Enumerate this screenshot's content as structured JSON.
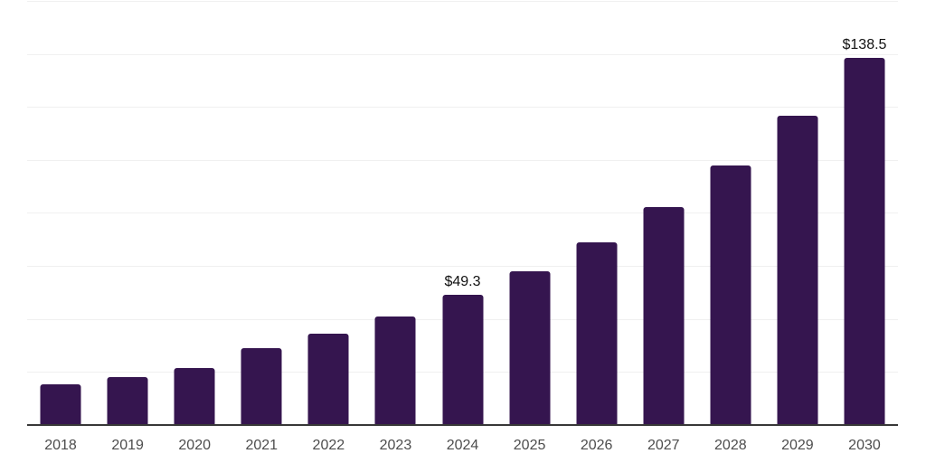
{
  "chart_data": {
    "type": "bar",
    "title": "",
    "xlabel": "",
    "ylabel": "",
    "categories": [
      "2018",
      "2019",
      "2020",
      "2021",
      "2022",
      "2023",
      "2024",
      "2025",
      "2026",
      "2027",
      "2028",
      "2029",
      "2030"
    ],
    "values": [
      15.3,
      18.0,
      21.5,
      29.0,
      34.5,
      41.0,
      49.3,
      58.1,
      68.8,
      82.1,
      97.8,
      116.6,
      138.5
    ],
    "value_labels": {
      "2024": "$49.3",
      "2030": "$138.5"
    },
    "ylim": [
      0,
      160
    ],
    "gridline_step": 20,
    "grid": true,
    "legend": false,
    "colors": {
      "bar": "#35154F",
      "gridline": "#F0F0F0",
      "axis_line": "#383838",
      "tick_label": "#4D4D4D",
      "value_label": "#111111",
      "background": "#FFFFFF"
    }
  }
}
